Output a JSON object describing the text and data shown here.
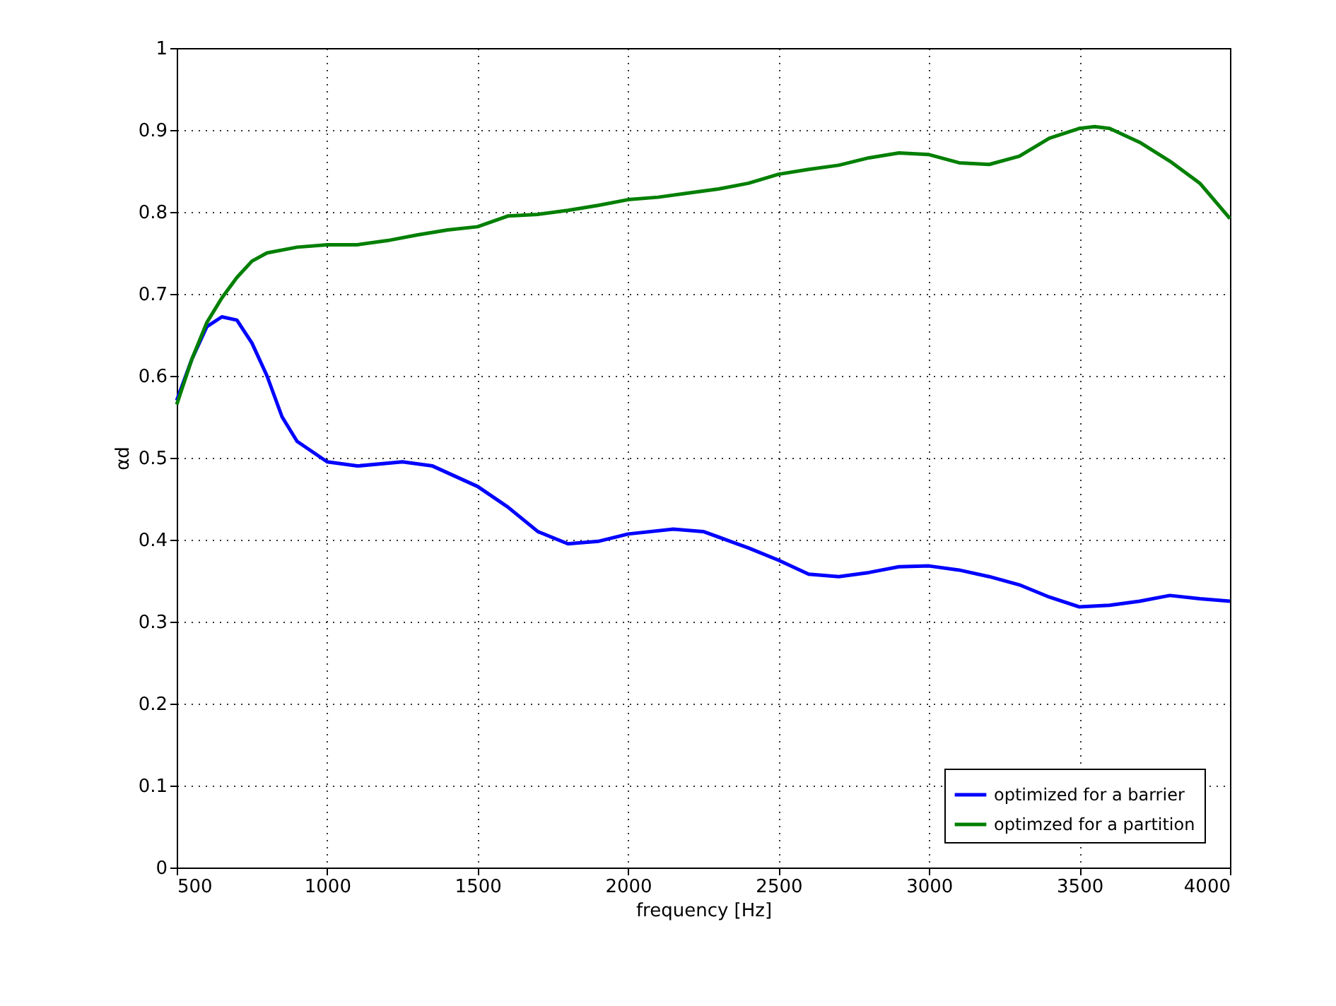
{
  "chart_data": {
    "type": "line",
    "xlabel": "frequency [Hz]",
    "ylabel": "αd",
    "xlim": [
      500,
      4000
    ],
    "xticks": [
      500,
      1000,
      1500,
      2000,
      2500,
      3000,
      3500,
      4000
    ],
    "ylim": [
      0,
      1
    ],
    "yticks": [
      0,
      0.1,
      0.2,
      0.3,
      0.4,
      0.5,
      0.6,
      0.7,
      0.8,
      0.9,
      1
    ],
    "grid": true,
    "legend": "bottom right",
    "marker": "none",
    "line_style": "solid",
    "series": [
      {
        "name": "optimized for a barrier",
        "color": "#0000ff",
        "x": [
          500,
          550,
          600,
          650,
          700,
          750,
          800,
          850,
          900,
          1000,
          1100,
          1250,
          1350,
          1500,
          1600,
          1700,
          1800,
          1900,
          2000,
          2150,
          2250,
          2400,
          2500,
          2600,
          2700,
          2800,
          2900,
          3000,
          3100,
          3200,
          3300,
          3400,
          3500,
          3600,
          3700,
          3800,
          3900,
          4000
        ],
        "values": [
          0.57,
          0.62,
          0.66,
          0.672,
          0.668,
          0.64,
          0.6,
          0.55,
          0.52,
          0.495,
          0.49,
          0.495,
          0.49,
          0.465,
          0.44,
          0.41,
          0.395,
          0.398,
          0.407,
          0.413,
          0.41,
          0.39,
          0.375,
          0.358,
          0.355,
          0.36,
          0.367,
          0.368,
          0.363,
          0.355,
          0.345,
          0.33,
          0.318,
          0.32,
          0.325,
          0.332,
          0.328,
          0.325
        ]
      },
      {
        "name": "optimzed for a partition",
        "color": "#007f00",
        "x": [
          500,
          550,
          600,
          650,
          700,
          750,
          800,
          900,
          1000,
          1100,
          1200,
          1300,
          1400,
          1500,
          1600,
          1700,
          1800,
          1900,
          2000,
          2100,
          2200,
          2300,
          2400,
          2500,
          2600,
          2700,
          2800,
          2900,
          3000,
          3100,
          3200,
          3300,
          3400,
          3500,
          3550,
          3600,
          3700,
          3800,
          3900,
          4000
        ],
        "values": [
          0.565,
          0.62,
          0.665,
          0.695,
          0.72,
          0.74,
          0.75,
          0.757,
          0.76,
          0.76,
          0.765,
          0.772,
          0.778,
          0.782,
          0.795,
          0.797,
          0.802,
          0.808,
          0.815,
          0.818,
          0.823,
          0.828,
          0.835,
          0.846,
          0.852,
          0.857,
          0.866,
          0.872,
          0.87,
          0.86,
          0.858,
          0.868,
          0.89,
          0.902,
          0.904,
          0.902,
          0.885,
          0.862,
          0.835,
          0.792
        ]
      }
    ]
  }
}
